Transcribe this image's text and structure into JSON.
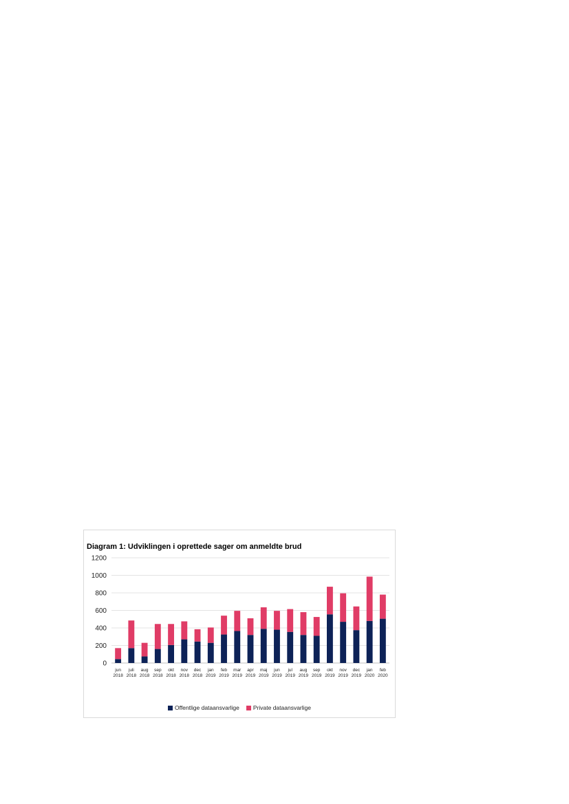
{
  "chart_data": {
    "type": "bar",
    "stacked": true,
    "title": "Diagram 1: Udviklingen i oprettede sager om anmeldte brud",
    "categories": [
      [
        "jun",
        "2018"
      ],
      [
        "juli",
        "2018"
      ],
      [
        "aug",
        "2018"
      ],
      [
        "sep",
        "2018"
      ],
      [
        "okt",
        "2018"
      ],
      [
        "nov",
        "2018"
      ],
      [
        "dec",
        "2018"
      ],
      [
        "jan",
        "2019"
      ],
      [
        "feb",
        "2019"
      ],
      [
        "mar",
        "2019"
      ],
      [
        "apr",
        "2019"
      ],
      [
        "maj",
        "2019"
      ],
      [
        "jun",
        "2019"
      ],
      [
        "jul",
        "2019"
      ],
      [
        "aug",
        "2019"
      ],
      [
        "sep",
        "2019"
      ],
      [
        "okt",
        "2019"
      ],
      [
        "nov",
        "2019"
      ],
      [
        "dec",
        "2019"
      ],
      [
        "jan",
        "2020"
      ],
      [
        "feb",
        "2020"
      ]
    ],
    "series": [
      {
        "name": "Offentlige dataansvarlige",
        "color": "#0d2257",
        "values": [
          45,
          170,
          75,
          160,
          205,
          270,
          245,
          230,
          325,
          365,
          320,
          390,
          380,
          355,
          320,
          310,
          555,
          470,
          375,
          480,
          505
        ]
      },
      {
        "name": "Private dataansvarlige",
        "color": "#e03c66",
        "values": [
          125,
          315,
          155,
          285,
          240,
          205,
          140,
          175,
          215,
          230,
          190,
          245,
          215,
          260,
          260,
          215,
          315,
          325,
          270,
          505,
          275
        ]
      }
    ],
    "ylim": [
      0,
      1200
    ],
    "yticks": [
      0,
      200,
      400,
      600,
      800,
      1000,
      1200
    ],
    "xlabel": "",
    "ylabel": "",
    "grid": true,
    "legend_position": "bottom"
  }
}
